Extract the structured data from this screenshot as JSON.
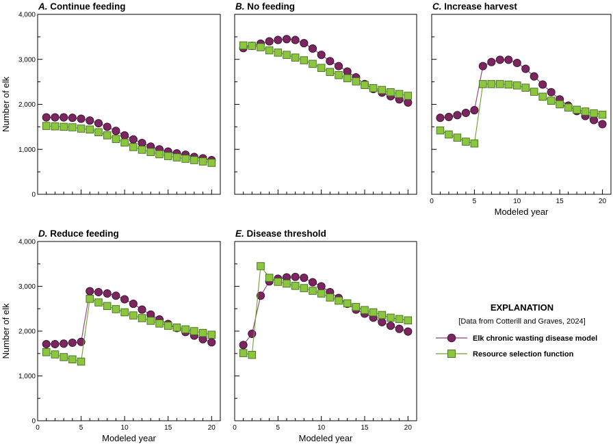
{
  "chart_data": [
    {
      "type": "line",
      "letter": "A.",
      "title": "Continue feeding",
      "xlabel": "",
      "ylabel": "Number of elk",
      "xlim": [
        0,
        21
      ],
      "ylim": [
        0,
        4000
      ],
      "xticks": [
        0,
        5,
        10,
        15,
        20
      ],
      "yticks": [
        "0",
        "1,000",
        "2,000",
        "3,000",
        "4,000"
      ],
      "x": [
        1,
        2,
        3,
        4,
        5,
        6,
        7,
        8,
        9,
        10,
        11,
        12,
        13,
        14,
        15,
        16,
        17,
        18,
        19,
        20
      ],
      "series": [
        {
          "name": "Elk chronic wasting disease model",
          "values": [
            1710,
            1710,
            1710,
            1700,
            1680,
            1640,
            1580,
            1500,
            1410,
            1310,
            1220,
            1140,
            1060,
            1000,
            950,
            910,
            880,
            830,
            800,
            760
          ]
        },
        {
          "name": "Resource selection function",
          "values": [
            1520,
            1510,
            1500,
            1490,
            1460,
            1440,
            1380,
            1310,
            1230,
            1150,
            1050,
            990,
            940,
            890,
            850,
            820,
            790,
            760,
            730,
            700
          ]
        }
      ]
    },
    {
      "type": "line",
      "letter": "B.",
      "title": "No feeding",
      "xlabel": "",
      "ylabel": "",
      "xlim": [
        0,
        21
      ],
      "ylim": [
        0,
        4000
      ],
      "xticks": [
        0,
        5,
        10,
        15,
        20
      ],
      "x": [
        1,
        2,
        3,
        4,
        5,
        6,
        7,
        8,
        9,
        10,
        11,
        12,
        13,
        14,
        15,
        16,
        17,
        18,
        19,
        20
      ],
      "series": [
        {
          "name": "Elk chronic wasting disease model",
          "values": [
            3250,
            3300,
            3350,
            3400,
            3430,
            3450,
            3430,
            3360,
            3240,
            3100,
            2960,
            2850,
            2730,
            2600,
            2450,
            2340,
            2260,
            2180,
            2110,
            2040
          ]
        },
        {
          "name": "Resource selection function",
          "values": [
            3310,
            3300,
            3270,
            3200,
            3150,
            3100,
            3040,
            2980,
            2900,
            2810,
            2720,
            2650,
            2580,
            2510,
            2430,
            2360,
            2320,
            2270,
            2230,
            2190
          ]
        }
      ]
    },
    {
      "type": "line",
      "letter": "C.",
      "title": "Increase harvest",
      "xlabel": "Modeled year",
      "ylabel": "",
      "xlim": [
        0,
        21
      ],
      "ylim": [
        0,
        4000
      ],
      "xticks": [
        0,
        5,
        10,
        15,
        20
      ],
      "xticklabels": [
        "0",
        "5",
        "10",
        "15",
        "20"
      ],
      "x": [
        1,
        2,
        3,
        4,
        5,
        6,
        7,
        8,
        9,
        10,
        11,
        12,
        13,
        14,
        15,
        16,
        17,
        18,
        19,
        20
      ],
      "series": [
        {
          "name": "Elk chronic wasting disease model",
          "values": [
            1700,
            1720,
            1760,
            1810,
            1870,
            2850,
            2940,
            2990,
            2990,
            2920,
            2790,
            2620,
            2440,
            2270,
            2110,
            1970,
            1850,
            1740,
            1650,
            1560
          ]
        },
        {
          "name": "Resource selection function",
          "values": [
            1420,
            1330,
            1260,
            1170,
            1130,
            2450,
            2450,
            2450,
            2440,
            2420,
            2370,
            2280,
            2170,
            2080,
            2000,
            1930,
            1880,
            1840,
            1800,
            1770
          ]
        }
      ]
    },
    {
      "type": "line",
      "letter": "D.",
      "title": "Reduce feeding",
      "xlabel": "Modeled year",
      "ylabel": "Number of elk",
      "xlim": [
        0,
        21
      ],
      "ylim": [
        0,
        4000
      ],
      "xticks": [
        0,
        5,
        10,
        15,
        20
      ],
      "xticklabels": [
        "0",
        "5",
        "10",
        "15",
        "20"
      ],
      "yticks": [
        "0",
        "1,000",
        "2,000",
        "3,000",
        "4,000"
      ],
      "x": [
        1,
        2,
        3,
        4,
        5,
        6,
        7,
        8,
        9,
        10,
        11,
        12,
        13,
        14,
        15,
        16,
        17,
        18,
        19,
        20
      ],
      "series": [
        {
          "name": "Elk chronic wasting disease model",
          "values": [
            1710,
            1710,
            1720,
            1740,
            1760,
            2890,
            2870,
            2840,
            2790,
            2710,
            2610,
            2480,
            2370,
            2260,
            2160,
            2070,
            1980,
            1900,
            1820,
            1750
          ]
        },
        {
          "name": "Resource selection function",
          "values": [
            1530,
            1480,
            1420,
            1370,
            1320,
            2720,
            2640,
            2560,
            2490,
            2420,
            2350,
            2290,
            2230,
            2170,
            2120,
            2080,
            2040,
            2000,
            1960,
            1920
          ]
        }
      ]
    },
    {
      "type": "line",
      "letter": "E.",
      "title": "Disease threshold",
      "xlabel": "Modeled year",
      "ylabel": "",
      "xlim": [
        0,
        21
      ],
      "ylim": [
        0,
        4000
      ],
      "xticks": [
        0,
        5,
        10,
        15,
        20
      ],
      "xticklabels": [
        "0",
        "5",
        "10",
        "15",
        "20"
      ],
      "x": [
        1,
        2,
        3,
        4,
        5,
        6,
        7,
        8,
        9,
        10,
        11,
        12,
        13,
        14,
        15,
        16,
        17,
        18,
        19,
        20
      ],
      "series": [
        {
          "name": "Elk chronic wasting disease model",
          "values": [
            1690,
            1940,
            2790,
            3110,
            3170,
            3200,
            3210,
            3190,
            3090,
            3000,
            2870,
            2740,
            2610,
            2480,
            2390,
            2300,
            2200,
            2120,
            2050,
            1990
          ]
        },
        {
          "name": "Resource selection function",
          "values": [
            1510,
            1470,
            3450,
            3190,
            3100,
            3060,
            3010,
            2960,
            2900,
            2840,
            2750,
            2680,
            2620,
            2540,
            2470,
            2420,
            2360,
            2300,
            2270,
            2240
          ]
        }
      ]
    }
  ],
  "legend": {
    "title": "EXPLANATION",
    "subtitle": "[Data from Cotterill and Graves, 2024]",
    "items": [
      {
        "label": "Elk chronic wasting disease model",
        "marker": "circle",
        "fill": "#7b2561",
        "line": "#8e3d75"
      },
      {
        "label": "Resource selection function",
        "marker": "square",
        "fill": "#8cc63f",
        "line": "#6aa12a"
      }
    ]
  },
  "colors": {
    "cwd_fill": "#7b2561",
    "cwd_stroke": "#3a0f2c",
    "cwd_line": "#8e3d75",
    "rsf_fill": "#8cc63f",
    "rsf_stroke": "#3f6d1a",
    "rsf_line": "#6aa12a",
    "axis": "#000000"
  }
}
